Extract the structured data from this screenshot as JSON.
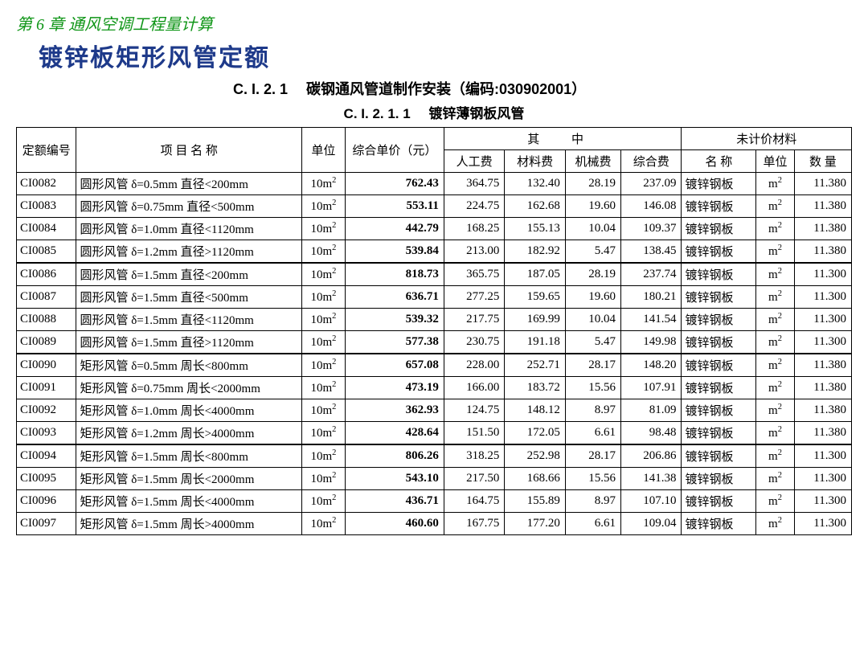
{
  "chapter": "第 6 章 通风空调工程量计算",
  "title": "镀锌板矩形风管定额",
  "subtitle1_code": "C. I. 2. 1",
  "subtitle1_text": "碳钢通风管道制作安装（编码:030902001）",
  "subtitle2_code": "C. I. 2. 1. 1",
  "subtitle2_text": "镀锌薄钢板风管",
  "headers": {
    "code": "定额编号",
    "name": "项 目 名 称",
    "unit": "单位",
    "price": "综合单价（元）",
    "breakdown": "其    中",
    "labor": "人工费",
    "material": "材料费",
    "machine": "机械费",
    "composite": "综合费",
    "unpriced": "未计价材料",
    "mname": "名 称",
    "munit": "单位",
    "mqty": "数  量"
  },
  "unit_10m2": "10m²",
  "unit_m2": "m²",
  "mat_name": "镀锌钢板",
  "groups": [
    [
      {
        "code": "CI0082",
        "name": "圆形风管 δ=0.5mm 直径<200mm",
        "price": "762.43",
        "labor": "364.75",
        "material": "132.40",
        "machine": "28.19",
        "composite": "237.09",
        "qty": "11.380"
      },
      {
        "code": "CI0083",
        "name": "圆形风管 δ=0.75mm 直径<500mm",
        "price": "553.11",
        "labor": "224.75",
        "material": "162.68",
        "machine": "19.60",
        "composite": "146.08",
        "qty": "11.380"
      },
      {
        "code": "CI0084",
        "name": "圆形风管 δ=1.0mm 直径<1120mm",
        "price": "442.79",
        "labor": "168.25",
        "material": "155.13",
        "machine": "10.04",
        "composite": "109.37",
        "qty": "11.380"
      },
      {
        "code": "CI0085",
        "name": "圆形风管 δ=1.2mm 直径>1120mm",
        "price": "539.84",
        "labor": "213.00",
        "material": "182.92",
        "machine": "5.47",
        "composite": "138.45",
        "qty": "11.380"
      }
    ],
    [
      {
        "code": "CI0086",
        "name": "圆形风管 δ=1.5mm 直径<200mm",
        "price": "818.73",
        "labor": "365.75",
        "material": "187.05",
        "machine": "28.19",
        "composite": "237.74",
        "qty": "11.300"
      },
      {
        "code": "CI0087",
        "name": "圆形风管 δ=1.5mm 直径<500mm",
        "price": "636.71",
        "labor": "277.25",
        "material": "159.65",
        "machine": "19.60",
        "composite": "180.21",
        "qty": "11.300"
      },
      {
        "code": "CI0088",
        "name": "圆形风管 δ=1.5mm 直径<1120mm",
        "price": "539.32",
        "labor": "217.75",
        "material": "169.99",
        "machine": "10.04",
        "composite": "141.54",
        "qty": "11.300"
      },
      {
        "code": "CI0089",
        "name": "圆形风管 δ=1.5mm 直径>1120mm",
        "price": "577.38",
        "labor": "230.75",
        "material": "191.18",
        "machine": "5.47",
        "composite": "149.98",
        "qty": "11.300"
      }
    ],
    [
      {
        "code": "CI0090",
        "name": "矩形风管 δ=0.5mm 周长<800mm",
        "price": "657.08",
        "labor": "228.00",
        "material": "252.71",
        "machine": "28.17",
        "composite": "148.20",
        "qty": "11.380"
      },
      {
        "code": "CI0091",
        "name": "矩形风管 δ=0.75mm 周长<2000mm",
        "price": "473.19",
        "labor": "166.00",
        "material": "183.72",
        "machine": "15.56",
        "composite": "107.91",
        "qty": "11.380"
      },
      {
        "code": "CI0092",
        "name": "矩形风管 δ=1.0mm 周长<4000mm",
        "price": "362.93",
        "labor": "124.75",
        "material": "148.12",
        "machine": "8.97",
        "composite": "81.09",
        "qty": "11.380"
      },
      {
        "code": "CI0093",
        "name": "矩形风管 δ=1.2mm 周长>4000mm",
        "price": "428.64",
        "labor": "151.50",
        "material": "172.05",
        "machine": "6.61",
        "composite": "98.48",
        "qty": "11.380"
      }
    ],
    [
      {
        "code": "CI0094",
        "name": "矩形风管 δ=1.5mm 周长<800mm",
        "price": "806.26",
        "labor": "318.25",
        "material": "252.98",
        "machine": "28.17",
        "composite": "206.86",
        "qty": "11.300"
      },
      {
        "code": "CI0095",
        "name": "矩形风管 δ=1.5mm 周长<2000mm",
        "price": "543.10",
        "labor": "217.50",
        "material": "168.66",
        "machine": "15.56",
        "composite": "141.38",
        "qty": "11.300"
      },
      {
        "code": "CI0096",
        "name": "矩形风管 δ=1.5mm 周长<4000mm",
        "price": "436.71",
        "labor": "164.75",
        "material": "155.89",
        "machine": "8.97",
        "composite": "107.10",
        "qty": "11.300"
      },
      {
        "code": "CI0097",
        "name": "矩形风管 δ=1.5mm 周长>4000mm",
        "price": "460.60",
        "labor": "167.75",
        "material": "177.20",
        "machine": "6.61",
        "composite": "109.04",
        "qty": "11.300"
      }
    ]
  ]
}
